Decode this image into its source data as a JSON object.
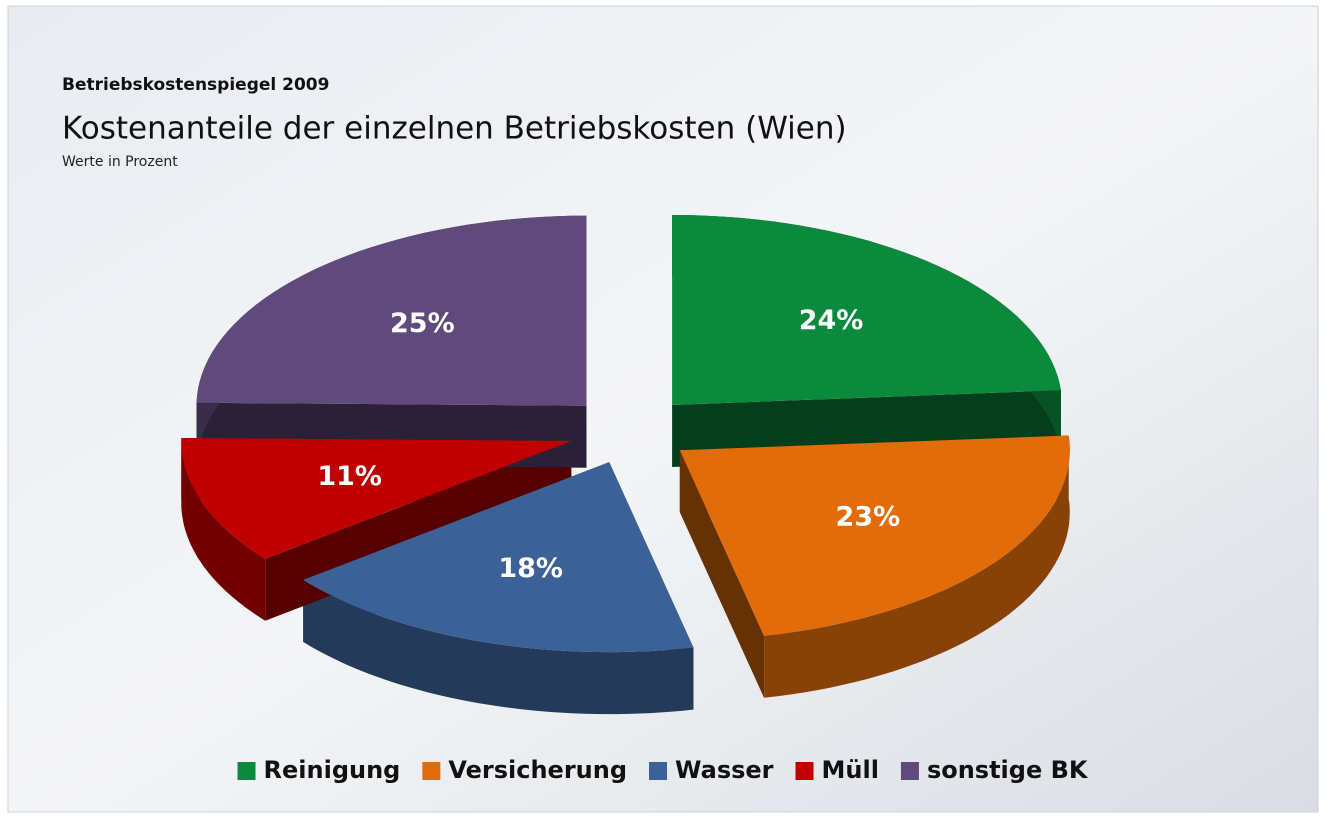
{
  "chart_data": {
    "type": "pie",
    "supertitle": "Betriebskostenspiegel 2009",
    "title": "Kostenanteile der einzelnen Betriebskosten (Wien)",
    "subtitle": "Werte in Prozent",
    "categories": [
      "Reinigung",
      "Versicherung",
      "Wasser",
      "Müll",
      "sonstige BK"
    ],
    "values": [
      24,
      23,
      18,
      11,
      25
    ],
    "value_labels": [
      "24%",
      "23%",
      "18%",
      "11%",
      "25%"
    ],
    "colors": [
      "#0b8a3e",
      "#e36c0a",
      "#3b6196",
      "#c00000",
      "#604a7b"
    ],
    "legend": "bottom"
  }
}
